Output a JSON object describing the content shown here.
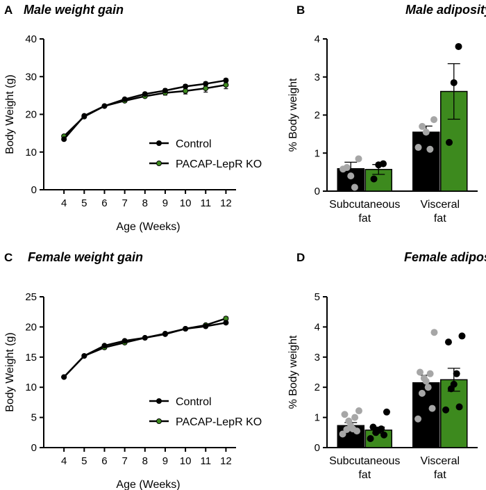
{
  "chart_data": [
    {
      "panel": "A",
      "type": "line",
      "title": "Male weight gain",
      "xlabel": "Age (Weeks)",
      "ylabel": "Body Weight (g)",
      "x": [
        4,
        5,
        6,
        7,
        8,
        9,
        10,
        11,
        12
      ],
      "xlim": [
        3,
        12.5
      ],
      "ylim": [
        0,
        40
      ],
      "yticks": [
        0,
        10,
        20,
        30,
        40
      ],
      "series": [
        {
          "name": "Control",
          "color": "#000000",
          "values": [
            13.4,
            19.6,
            22.2,
            24.0,
            25.4,
            26.3,
            27.4,
            28.1,
            29.0
          ],
          "sem": [
            0.3,
            0.3,
            0.3,
            0.4,
            0.4,
            0.5,
            0.5,
            0.5,
            0.5
          ]
        },
        {
          "name": "PACAP-LepR KO",
          "color": "#3d8a1e",
          "values": [
            14.2,
            19.4,
            22.2,
            23.6,
            24.8,
            25.7,
            26.2,
            26.9,
            27.8
          ],
          "sem": [
            0.3,
            0.3,
            0.3,
            0.4,
            0.4,
            0.6,
            0.8,
            1.0,
            1.0
          ]
        }
      ],
      "legend_position": "bottom-right"
    },
    {
      "panel": "B",
      "type": "bar",
      "title": "Male adiposity",
      "ylabel": "% Body weight",
      "categories": [
        "Subcutaneous\nfat",
        "Visceral\nfat"
      ],
      "ylim": [
        0,
        4
      ],
      "yticks": [
        0,
        1,
        2,
        3,
        4
      ],
      "series": [
        {
          "name": "Control",
          "bar_color": "#000000",
          "point_color": "#a6a6a6",
          "values": [
            0.59,
            1.55
          ],
          "sem": [
            0.17,
            0.16
          ],
          "points": [
            [
              0.85,
              0.62,
              0.4,
              0.1,
              0.58
            ],
            [
              1.88,
              1.7,
              1.55,
              1.1,
              1.15
            ]
          ]
        },
        {
          "name": "PACAP-LepR KO",
          "bar_color": "#3d8a1e",
          "point_color": "#000000",
          "values": [
            0.57,
            2.62
          ],
          "sem": [
            0.13,
            0.73
          ],
          "points": [
            [
              0.72,
              0.69,
              0.32
            ],
            [
              3.8,
              2.85,
              1.28
            ]
          ]
        }
      ]
    },
    {
      "panel": "C",
      "type": "line",
      "title": "Female weight gain",
      "xlabel": "Age (Weeks)",
      "ylabel": "Body Weight (g)",
      "x": [
        4,
        5,
        6,
        7,
        8,
        9,
        10,
        11,
        12
      ],
      "xlim": [
        3,
        12.5
      ],
      "ylim": [
        0,
        25
      ],
      "yticks": [
        0,
        5,
        10,
        15,
        20,
        25
      ],
      "series": [
        {
          "name": "Control",
          "color": "#000000",
          "values": [
            11.7,
            15.2,
            16.9,
            17.7,
            18.2,
            18.8,
            19.7,
            20.1,
            20.7
          ],
          "sem": [
            0.15,
            0.15,
            0.2,
            0.2,
            0.2,
            0.2,
            0.2,
            0.25,
            0.25
          ]
        },
        {
          "name": "PACAP-LepR KO",
          "color": "#3d8a1e",
          "values": [
            11.7,
            15.2,
            16.6,
            17.4,
            18.2,
            18.9,
            19.7,
            20.3,
            21.4
          ],
          "sem": [
            0.15,
            0.15,
            0.2,
            0.25,
            0.2,
            0.2,
            0.25,
            0.25,
            0.3
          ]
        }
      ],
      "legend_position": "bottom-right"
    },
    {
      "panel": "D",
      "type": "bar",
      "title": "Female adiposity",
      "ylabel": "% Body weight",
      "categories": [
        "Subcutaneous\nfat",
        "Visceral\nfat"
      ],
      "ylim": [
        0,
        5
      ],
      "yticks": [
        0,
        1,
        2,
        3,
        4,
        5
      ],
      "series": [
        {
          "name": "Control",
          "bar_color": "#000000",
          "point_color": "#a6a6a6",
          "values": [
            0.73,
            2.15
          ],
          "sem": [
            0.1,
            0.25
          ],
          "points": [
            [
              1.22,
              1.1,
              1.0,
              0.88,
              0.72,
              0.62,
              0.6,
              0.55,
              0.45
            ],
            [
              3.82,
              2.5,
              2.45,
              2.3,
              2.2,
              2.0,
              1.8,
              1.3,
              0.95
            ]
          ]
        },
        {
          "name": "PACAP-LepR KO",
          "bar_color": "#3d8a1e",
          "point_color": "#000000",
          "values": [
            0.58,
            2.25
          ],
          "sem": [
            0.1,
            0.38
          ],
          "points": [
            [
              1.18,
              0.68,
              0.62,
              0.58,
              0.5,
              0.42,
              0.3
            ],
            [
              3.7,
              3.5,
              2.45,
              2.1,
              1.95,
              1.35,
              1.25
            ]
          ]
        }
      ]
    }
  ]
}
